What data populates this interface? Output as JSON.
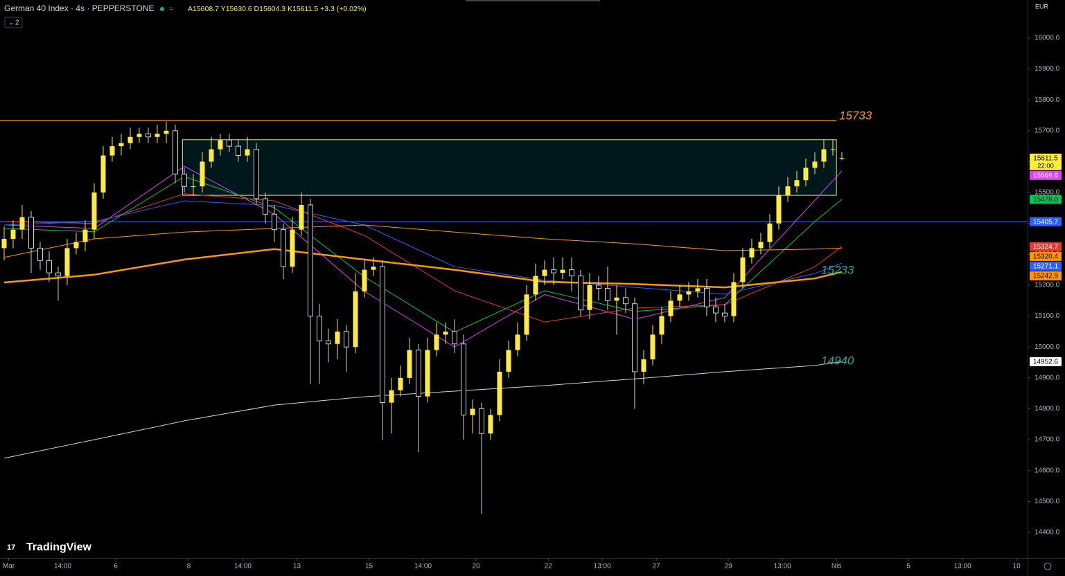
{
  "header": {
    "symbol": "German 40 Index · 4s · PEPPERSTONE",
    "ohlc": "A15608.7 Y15630.6 D15604.3 K15611.5 +3.3 (+0.02%)",
    "indicators_badge": "2"
  },
  "currency": "EUR",
  "countdown": "22:00",
  "logo": "TradingView",
  "chart_data": {
    "type": "candlestick",
    "open": [
      15320,
      15350,
      15380,
      15420,
      15320,
      15280,
      15240,
      15230,
      15320,
      15340,
      15380,
      15500,
      15620,
      15650,
      15660,
      15680,
      15690,
      15680,
      15690,
      15700,
      15560,
      15520,
      15520,
      15600,
      15640,
      15670,
      15650,
      15620,
      15640,
      15480,
      15430,
      15380,
      15260,
      15380,
      15460,
      15100,
      15020,
      15010,
      15050,
      15000,
      15180,
      15250,
      15260,
      14820,
      14860,
      14900,
      14990,
      14840,
      14990,
      15040,
      15050,
      15010,
      14780,
      14800,
      14720,
      14780,
      14920,
      14990,
      15040,
      15170,
      15230,
      15250,
      15240,
      15250,
      15230,
      15120,
      15200,
      15190,
      15150,
      15160,
      15140,
      14920,
      14960,
      15040,
      15100,
      15150,
      15170,
      15180,
      15190,
      15130,
      15110,
      15100,
      15210,
      15290,
      15320,
      15340,
      15400,
      15490,
      15520,
      15540,
      15580,
      15600,
      15640,
      15608.7
    ],
    "high": [
      15390,
      15410,
      15460,
      15440,
      15340,
      15310,
      15260,
      15350,
      15370,
      15410,
      15530,
      15650,
      15680,
      15690,
      15710,
      15710,
      15710,
      15720,
      15730,
      15720,
      15580,
      15560,
      15630,
      15680,
      15690,
      15690,
      15670,
      15680,
      15660,
      15500,
      15460,
      15400,
      15420,
      15500,
      15480,
      15140,
      15060,
      15090,
      15070,
      15240,
      15280,
      15290,
      15280,
      14900,
      14940,
      15030,
      15010,
      15030,
      15080,
      15080,
      15090,
      15040,
      14830,
      14820,
      14800,
      14960,
      15020,
      15080,
      15200,
      15270,
      15280,
      15290,
      15290,
      15290,
      15250,
      15240,
      15230,
      15260,
      15200,
      15190,
      15160,
      14990,
      15070,
      15130,
      15180,
      15200,
      15210,
      15220,
      15220,
      15160,
      15140,
      15240,
      15320,
      15350,
      15370,
      15430,
      15520,
      15550,
      15570,
      15610,
      15630,
      15670,
      15670,
      15630.6
    ],
    "low": [
      15280,
      15320,
      15350,
      15240,
      15250,
      15210,
      15150,
      15200,
      15300,
      15310,
      15350,
      15480,
      15600,
      15620,
      15640,
      15660,
      15660,
      15660,
      15660,
      15530,
      15500,
      15490,
      15500,
      15580,
      15620,
      15630,
      15600,
      15600,
      15460,
      15400,
      15340,
      15220,
      15240,
      15360,
      14880,
      14880,
      14950,
      14960,
      14920,
      14980,
      15160,
      15230,
      14700,
      14720,
      14840,
      14880,
      14660,
      14820,
      14970,
      15010,
      14980,
      14700,
      14720,
      14460,
      14700,
      14760,
      14900,
      14970,
      15020,
      15150,
      15200,
      15200,
      15220,
      15180,
      15100,
      15090,
      15150,
      15120,
      15040,
      15110,
      14800,
      14880,
      14940,
      15010,
      15080,
      15130,
      15150,
      15160,
      15100,
      15080,
      15080,
      15080,
      15190,
      15270,
      15300,
      15320,
      15380,
      15470,
      15500,
      15520,
      15560,
      15580,
      15620,
      15604.3
    ],
    "close": [
      15350,
      15380,
      15420,
      15320,
      15280,
      15240,
      15230,
      15320,
      15340,
      15380,
      15500,
      15620,
      15650,
      15660,
      15680,
      15690,
      15680,
      15690,
      15700,
      15560,
      15520,
      15520,
      15600,
      15640,
      15670,
      15650,
      15620,
      15640,
      15480,
      15430,
      15380,
      15260,
      15380,
      15460,
      15100,
      15020,
      15010,
      15050,
      15000,
      15180,
      15250,
      15260,
      14820,
      14860,
      14900,
      14990,
      14840,
      14990,
      15040,
      15050,
      15010,
      14780,
      14800,
      14720,
      14780,
      14920,
      14990,
      15040,
      15170,
      15230,
      15250,
      15240,
      15250,
      15230,
      15120,
      15200,
      15190,
      15150,
      15160,
      15140,
      14920,
      14960,
      15040,
      15100,
      15150,
      15170,
      15180,
      15190,
      15130,
      15110,
      15100,
      15210,
      15290,
      15320,
      15340,
      15400,
      15490,
      15520,
      15540,
      15580,
      15600,
      15640,
      15640,
      15611.5
    ],
    "up_color": "#ffeb3b",
    "down_color": "#d1d4dc",
    "xlim": [
      -0.46,
      113.62
    ],
    "xticks": [
      {
        "value": 0.5,
        "label": "Mar"
      },
      {
        "value": 6.5,
        "label": "14:00"
      },
      {
        "value": 12.4,
        "label": "6"
      },
      {
        "value": 20.5,
        "label": "8"
      },
      {
        "value": 26.5,
        "label": "14:00"
      },
      {
        "value": 32.5,
        "label": "13"
      },
      {
        "value": 40.5,
        "label": "15"
      },
      {
        "value": 46.5,
        "label": "14:00"
      },
      {
        "value": 52.4,
        "label": "20"
      },
      {
        "value": 60.4,
        "label": "22"
      },
      {
        "value": 66.4,
        "label": "13:00"
      },
      {
        "value": 72.4,
        "label": "27"
      },
      {
        "value": 80.4,
        "label": "29"
      },
      {
        "value": 86.4,
        "label": "13:00"
      },
      {
        "value": 92.4,
        "label": "Nis"
      },
      {
        "value": 100.4,
        "label": "5"
      },
      {
        "value": 106.4,
        "label": "13:00"
      },
      {
        "value": 112.4,
        "label": "10"
      }
    ],
    "ylim": [
      14317,
      16123.2
    ],
    "yticks": [
      {
        "value": 14400,
        "label": "14400.0"
      },
      {
        "value": 14500,
        "label": "14500.0"
      },
      {
        "value": 14600,
        "label": "14600.0"
      },
      {
        "value": 14700,
        "label": "14700.0"
      },
      {
        "value": 14800,
        "label": "14800.0"
      },
      {
        "value": 14900,
        "label": "14900.0"
      },
      {
        "value": 15000,
        "label": "15000.0"
      },
      {
        "value": 15100,
        "label": "15100.0"
      },
      {
        "value": 15200,
        "label": "15200.0"
      },
      {
        "value": 15300,
        "label": "15300.0"
      },
      {
        "value": 15400,
        "label": "15400.0"
      },
      {
        "value": 15500,
        "label": "15500.0"
      },
      {
        "value": 15600,
        "label": "15600.0"
      },
      {
        "value": 15700,
        "label": "15700.0"
      },
      {
        "value": 15800,
        "label": "15800.0"
      },
      {
        "value": 15900,
        "label": "15900.0"
      },
      {
        "value": 16000,
        "label": "16000.0"
      }
    ],
    "ma_x": [
      0,
      10,
      20,
      30,
      40,
      50,
      60,
      70,
      80,
      90,
      93
    ],
    "moving_averages": [
      {
        "color": "#e040fb",
        "width": 1,
        "values": [
          15395,
          15384,
          15585,
          15430,
          15180,
          15000,
          15170,
          15090,
          15160,
          15475,
          15569.6
        ]
      },
      {
        "color": "#00c853",
        "width": 1,
        "values": [
          15384,
          15373,
          15552,
          15451,
          15227,
          15048,
          15182,
          15115,
          15137,
          15406,
          15478
        ]
      },
      {
        "color": "#e53935",
        "width": 1,
        "values": [
          15406,
          15400,
          15496,
          15473,
          15361,
          15182,
          15081,
          15126,
          15137,
          15260,
          15324.7
        ]
      },
      {
        "color": "#2962ff",
        "width": 1,
        "values": [
          15395,
          15406,
          15473,
          15458,
          15395,
          15260,
          15216,
          15193,
          15171,
          15238,
          15271.1
        ]
      },
      {
        "color": "#ff9800",
        "width": 1,
        "values": [
          15290,
          15350,
          15372,
          15384,
          15395,
          15372,
          15350,
          15334,
          15312,
          15317,
          15320.4
        ]
      },
      {
        "color": "#ff9800",
        "width": 2.5,
        "values": [
          15209,
          15234,
          15283,
          15317,
          15283,
          15250,
          15211,
          15204,
          15193,
          15222,
          15242.9
        ]
      },
      {
        "color": "#d1d4dc",
        "width": 1,
        "values": [
          14640,
          14700,
          14761,
          14812,
          14839,
          14857,
          14875,
          14897,
          14920,
          14940,
          14952.6
        ]
      }
    ],
    "hlines": [
      {
        "value": 15733,
        "color": "#ff9800",
        "end": 92.4
      },
      {
        "value": 15405.7,
        "color": "#2962ff",
        "end": 113.62
      }
    ],
    "zone": {
      "top": 15671,
      "bottom": 15491,
      "x": [
        19.8,
        92.4
      ],
      "color": "#f5e642"
    },
    "annotations": [
      {
        "value": 15733,
        "x": 92.7,
        "color": "#ff9800"
      },
      {
        "value": 15233,
        "x": 90.7,
        "color": "#26a69a"
      },
      {
        "value": 14940,
        "x": 90.7,
        "color": "#26a69a"
      }
    ],
    "price_labels": [
      {
        "value": 15611.5,
        "bg": "#ffeb3b",
        "fg": "#000000"
      },
      {
        "value": 15569.6,
        "bg": "#e040fb",
        "fg": "#ffffff"
      },
      {
        "value": {
          "value": 15478,
          "label": "15478.0"
        },
        "bg": "#00c853",
        "fg": "#000000"
      },
      {
        "value": 15405.7,
        "bg": "#2962ff",
        "fg": "#ffffff"
      },
      {
        "value": 15324.7,
        "bg": "#e53935",
        "fg": "#ffffff"
      },
      {
        "value": 15320.4,
        "bg": "#ff9800",
        "fg": "#000000"
      },
      {
        "value": 15271.1,
        "bg": "#2962ff",
        "fg": "#ffffff"
      },
      {
        "value": 15242.9,
        "bg": "#ff9800",
        "fg": "#000000"
      },
      {
        "value": 14952.6,
        "bg": "#ffffff",
        "fg": "#000000"
      }
    ]
  }
}
